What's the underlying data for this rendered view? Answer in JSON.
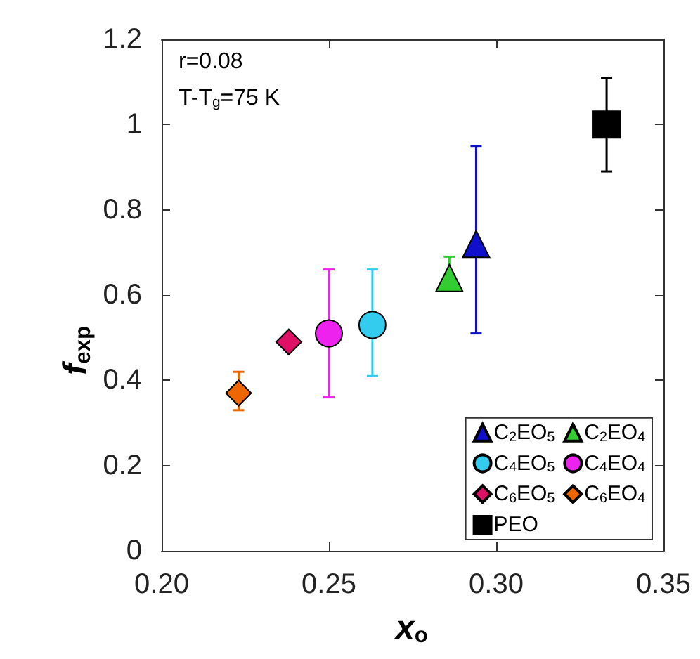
{
  "chart_data": {
    "type": "scatter",
    "xlabel": "x$_{o}$",
    "ylabel": "f$_{exp}$",
    "xlim": [
      0.2,
      0.35
    ],
    "xticks": [
      {
        "value": 0.2,
        "label": "0.20"
      },
      0.25,
      {
        "value": 0.3,
        "label": "0.30"
      },
      0.35
    ],
    "ylim": [
      0,
      1.2
    ],
    "yticks": [
      0,
      0.2,
      0.4,
      0.6,
      0.8,
      1,
      1.2
    ],
    "grid": false,
    "legend": "bottom right",
    "annotations": [
      "r=0.08",
      "T-T$_{g}$=75 K"
    ],
    "series": [
      {
        "name": "C$_{2}$EO$_{5}$",
        "color": "#1010cc",
        "marker": "triangle",
        "x": [
          0.294
        ],
        "values": [
          0.72
        ],
        "errors": [
          [
            0.51,
            0.95
          ]
        ]
      },
      {
        "name": "C$_{2}$EO$_{4}$",
        "color": "#33cc33",
        "marker": "triangle",
        "x": [
          0.286
        ],
        "values": [
          0.64
        ],
        "errors": [
          [
            0.61,
            0.69
          ]
        ]
      },
      {
        "name": "C$_{4}$EO$_{5}$",
        "color": "#33ccee",
        "marker": "circle",
        "x": [
          0.263
        ],
        "values": [
          0.53
        ],
        "errors": [
          [
            0.41,
            0.66
          ]
        ]
      },
      {
        "name": "C$_{4}$EO$_{4}$",
        "color": "#ee22ee",
        "marker": "circle",
        "x": [
          0.25
        ],
        "values": [
          0.51
        ],
        "errors": [
          0.15
        ]
      },
      {
        "name": "C$_{6}$EO$_{5}$",
        "color": "#dd1166",
        "marker": "diamond",
        "x": [
          0.238
        ],
        "values": [
          0.49
        ]
      },
      {
        "name": "C$_{6}$EO$_{4}$",
        "color": "#ee6600",
        "marker": "diamond",
        "x": [
          0.223
        ],
        "values": [
          0.37
        ],
        "errors": [
          [
            0.33,
            0.42
          ]
        ]
      },
      {
        "name": "PEO",
        "color": "#000000",
        "marker": "square",
        "x": [
          0.333
        ],
        "values": [
          1.0
        ],
        "errors": [
          0.11
        ]
      }
    ]
  }
}
